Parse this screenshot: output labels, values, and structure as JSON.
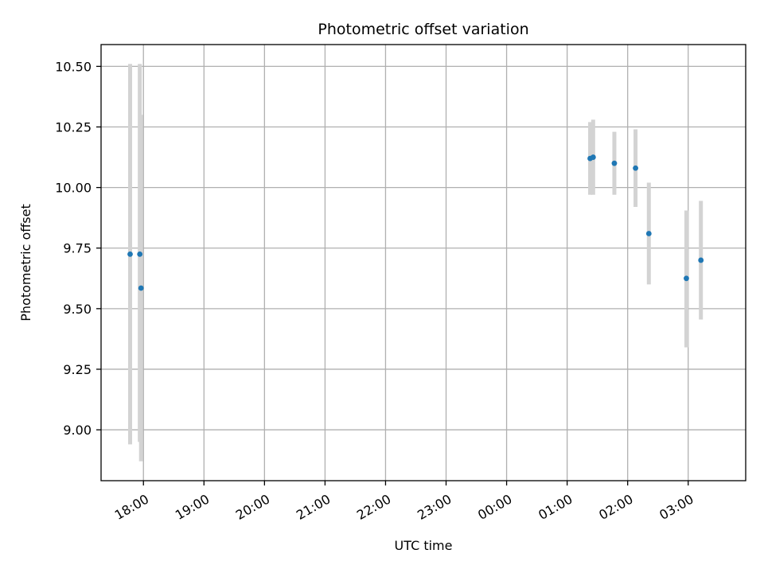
{
  "chart_data": {
    "type": "scatter",
    "title": "Photometric offset variation",
    "xlabel": "UTC time",
    "ylabel": "Photometric offset",
    "x_unit": "hour (relative to 00:00 UTC)",
    "xlim": [
      -6.7,
      3.95
    ],
    "ylim": [
      8.79,
      10.59
    ],
    "grid": true,
    "x_ticks": [
      {
        "value": -6,
        "label": "18:00"
      },
      {
        "value": -5,
        "label": "19:00"
      },
      {
        "value": -4,
        "label": "20:00"
      },
      {
        "value": -3,
        "label": "21:00"
      },
      {
        "value": -2,
        "label": "22:00"
      },
      {
        "value": -1,
        "label": "23:00"
      },
      {
        "value": 0,
        "label": "00:00"
      },
      {
        "value": 1,
        "label": "01:00"
      },
      {
        "value": 2,
        "label": "02:00"
      },
      {
        "value": 3,
        "label": "03:00"
      }
    ],
    "y_ticks": [
      {
        "value": 9.0,
        "label": "9.00"
      },
      {
        "value": 9.25,
        "label": "9.25"
      },
      {
        "value": 9.5,
        "label": "9.50"
      },
      {
        "value": 9.75,
        "label": "9.75"
      },
      {
        "value": 10.0,
        "label": "10.00"
      },
      {
        "value": 10.25,
        "label": "10.25"
      },
      {
        "value": 10.5,
        "label": "10.50"
      }
    ],
    "point_color": "#1f77b4",
    "errorbar_color": "#d3d3d3",
    "points": [
      {
        "x": -6.22,
        "y": 9.725,
        "err_low": 8.94,
        "err_high": 10.51
      },
      {
        "x": -6.06,
        "y": 9.725,
        "err_low": 8.95,
        "err_high": 10.51
      },
      {
        "x": -6.04,
        "y": 9.585,
        "err_low": 8.87,
        "err_high": 10.3
      },
      {
        "x": 1.38,
        "y": 10.12,
        "err_low": 9.97,
        "err_high": 10.27
      },
      {
        "x": 1.43,
        "y": 10.125,
        "err_low": 9.97,
        "err_high": 10.28
      },
      {
        "x": 1.78,
        "y": 10.1,
        "err_low": 9.97,
        "err_high": 10.23
      },
      {
        "x": 2.13,
        "y": 10.08,
        "err_low": 9.92,
        "err_high": 10.24
      },
      {
        "x": 2.35,
        "y": 9.81,
        "err_low": 9.6,
        "err_high": 10.02
      },
      {
        "x": 2.97,
        "y": 9.625,
        "err_low": 9.34,
        "err_high": 9.905
      },
      {
        "x": 3.21,
        "y": 9.7,
        "err_low": 9.455,
        "err_high": 9.945
      }
    ]
  }
}
